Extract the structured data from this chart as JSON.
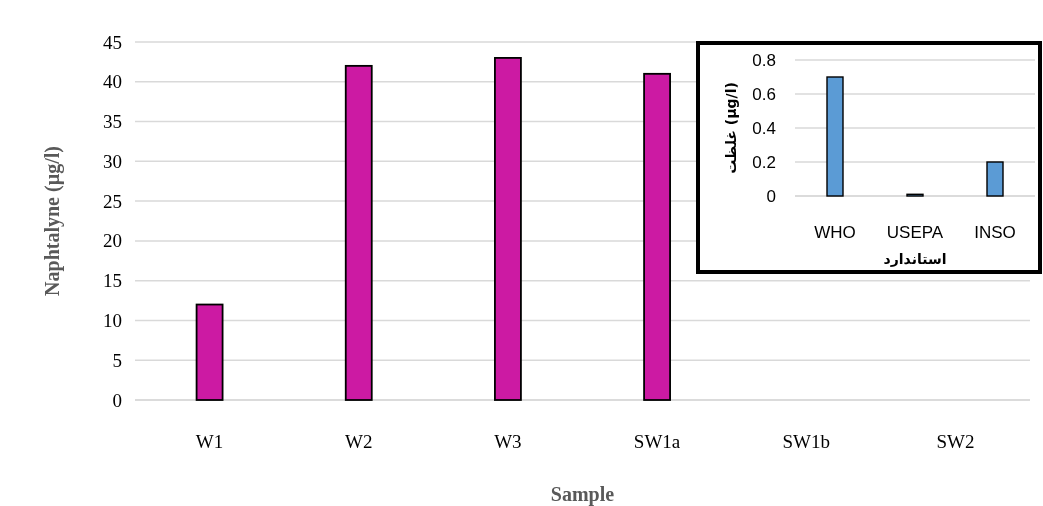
{
  "chart_data": [
    {
      "type": "bar",
      "categories": [
        "W1",
        "W2",
        "W3",
        "SW1a",
        "SW1b",
        "SW2"
      ],
      "values": [
        12,
        42,
        43,
        41,
        0,
        0
      ],
      "color": "#cc1aa3",
      "ylim": [
        0,
        45
      ],
      "yticks": [
        0,
        5,
        10,
        15,
        20,
        25,
        30,
        35,
        40,
        45
      ],
      "grid": "y",
      "xlabel": "Sample",
      "ylabel": "Naphtalyne (µg/l)"
    },
    {
      "type": "bar",
      "categories": [
        "WHO",
        "USEPA",
        "INSO"
      ],
      "values": [
        0.7,
        0.01,
        0.2
      ],
      "color": "#5b9bd5",
      "ylim": [
        0,
        0.8
      ],
      "yticks": [
        0,
        0.2,
        0.4,
        0.6,
        0.8
      ],
      "grid": "y",
      "xlabel": "استاندارد",
      "ylabel": "غلظت (µg/l)"
    }
  ]
}
